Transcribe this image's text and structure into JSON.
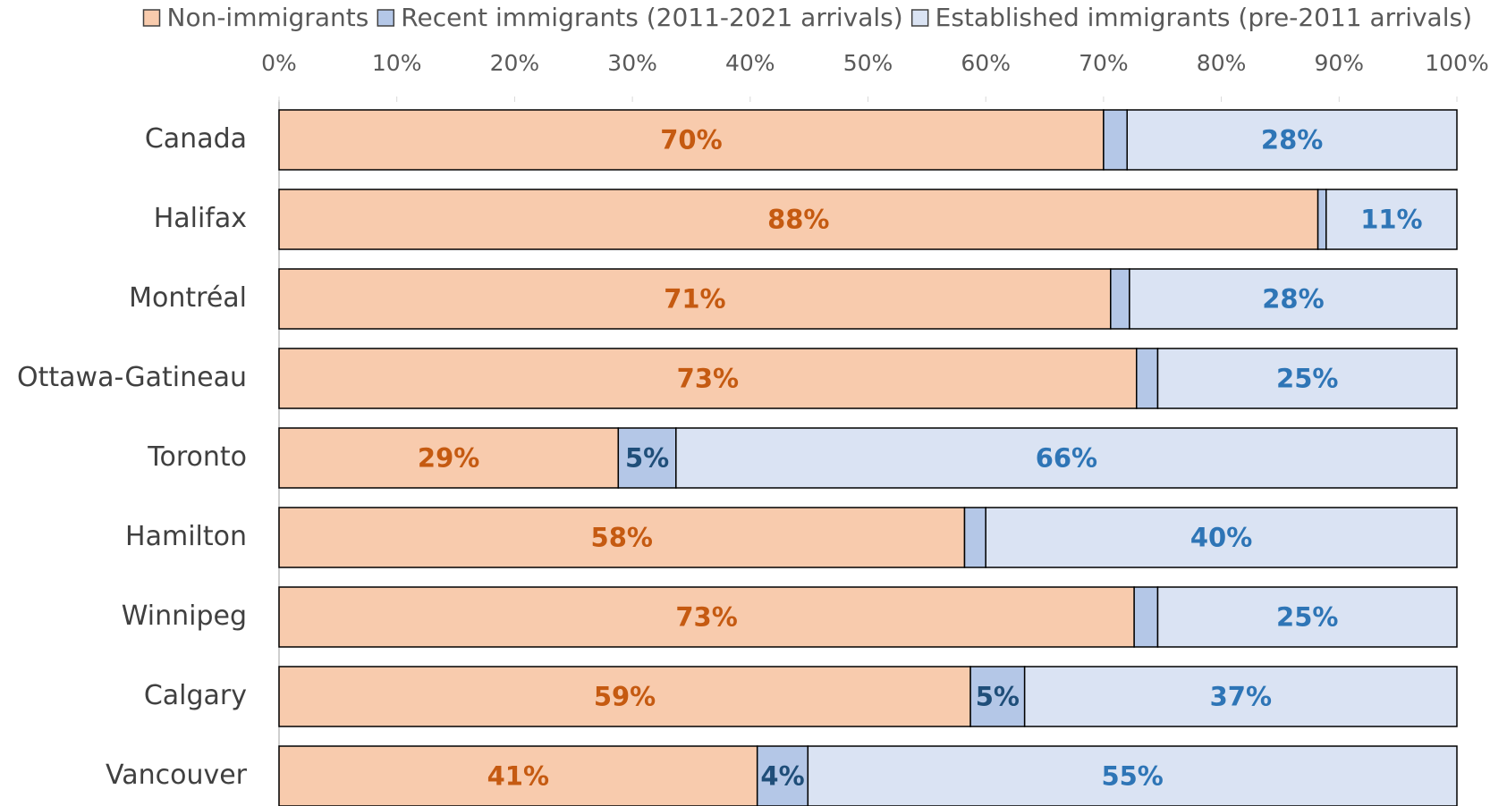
{
  "chart_data": {
    "type": "bar",
    "orientation": "horizontal",
    "stacked": true,
    "categories": [
      "Canada",
      "Halifax",
      "Montréal",
      "Ottawa-Gatineau",
      "Toronto",
      "Hamilton",
      "Winnipeg",
      "Calgary",
      "Vancouver"
    ],
    "series": [
      {
        "name": "Non-immigrants",
        "color": "#f8cbad",
        "label_color": "#c55a11",
        "values": [
          70.0,
          88.2,
          70.6,
          72.8,
          28.8,
          58.2,
          72.6,
          58.7,
          40.6
        ],
        "value_labels": [
          "70%",
          "88%",
          "71%",
          "73%",
          "29%",
          "58%",
          "73%",
          "59%",
          "41%"
        ]
      },
      {
        "name": "Recent immigrants (2011-2021 arrivals)",
        "color": "#b4c7e7",
        "label_color": "#1f4e79",
        "values": [
          2.0,
          0.7,
          1.6,
          1.8,
          4.9,
          1.8,
          2.0,
          4.6,
          4.3
        ],
        "value_labels": [
          null,
          null,
          null,
          null,
          "5%",
          null,
          null,
          "5%",
          "4%"
        ]
      },
      {
        "name": "Established immigrants (pre-2011 arrivals)",
        "color": "#dae3f3",
        "label_color": "#2e75b6",
        "values": [
          28.0,
          11.1,
          27.8,
          25.4,
          66.3,
          40.0,
          25.4,
          36.7,
          55.1
        ],
        "value_labels": [
          "28%",
          "11%",
          "28%",
          "25%",
          "66%",
          "40%",
          "25%",
          "37%",
          "55%"
        ]
      }
    ],
    "xlim": [
      0,
      100
    ],
    "xticks": [
      {
        "value": 0,
        "label": "0%"
      },
      {
        "value": 10,
        "label": "10%"
      },
      {
        "value": 20,
        "label": "20%"
      },
      {
        "value": 30,
        "label": "30%"
      },
      {
        "value": 40,
        "label": "40%"
      },
      {
        "value": 50,
        "label": "50%"
      },
      {
        "value": 60,
        "label": "60%"
      },
      {
        "value": 70,
        "label": "70%"
      },
      {
        "value": 80,
        "label": "80%"
      },
      {
        "value": 90,
        "label": "90%"
      },
      {
        "value": 100,
        "label": "100%"
      }
    ],
    "grid": false,
    "legend": "top"
  }
}
